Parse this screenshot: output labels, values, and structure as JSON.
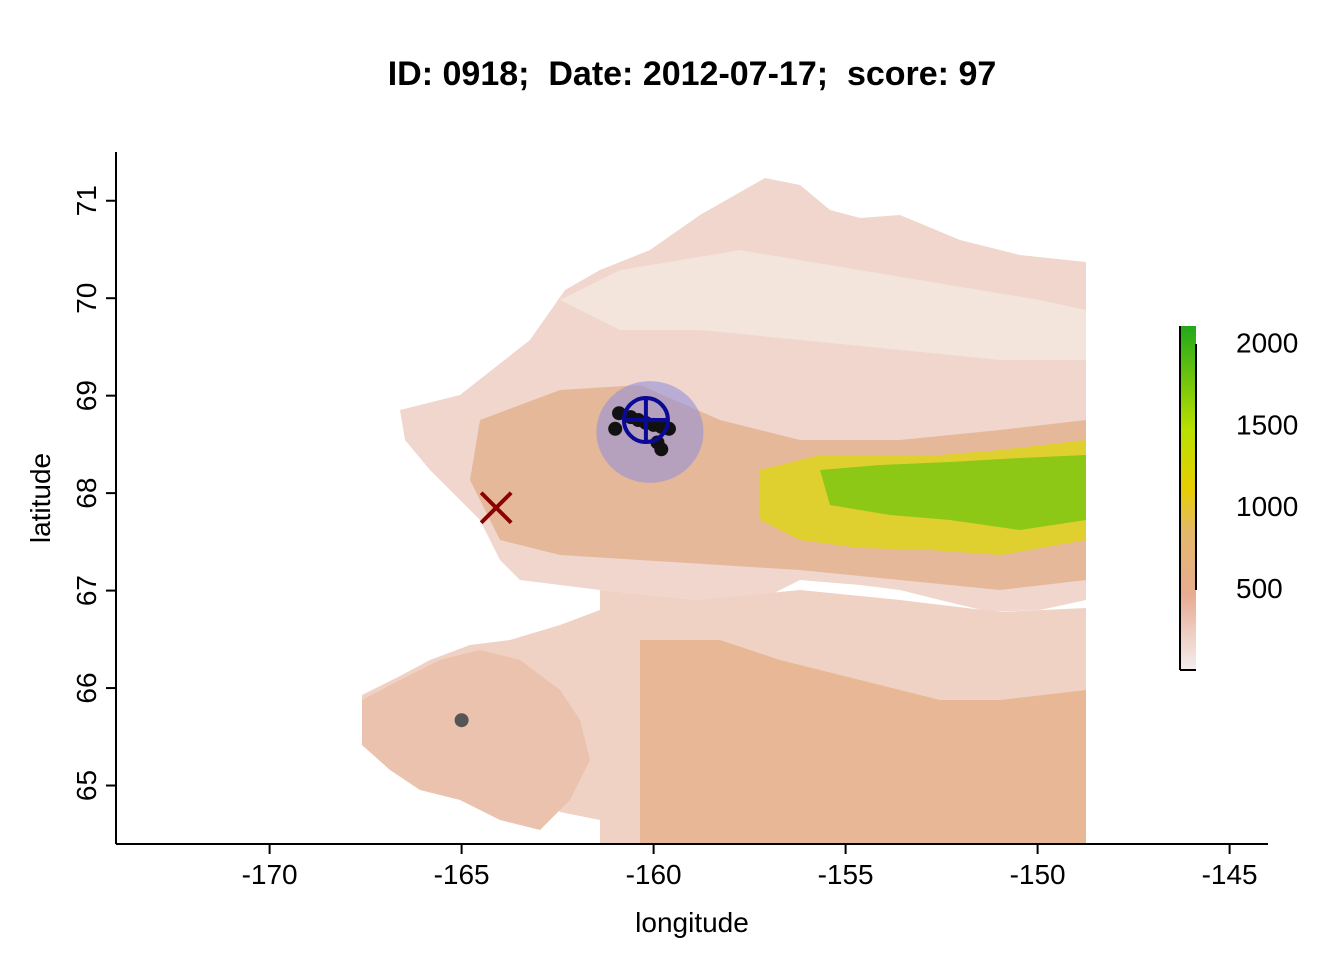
{
  "title": "ID: 0918;  Date: 2012-07-17;  score: 97",
  "chart_data": {
    "type": "map",
    "xlabel": "longitude",
    "ylabel": "latitude",
    "xlim": [
      -174,
      -144
    ],
    "ylim": [
      64.4,
      71.5
    ],
    "xticks": [
      -170,
      -165,
      -160,
      -155,
      -150,
      -145
    ],
    "yticks": [
      65,
      66,
      67,
      68,
      69,
      70,
      71
    ],
    "colorbar": {
      "ticks": [
        500,
        1000,
        1500,
        2000
      ],
      "range": [
        0,
        2100
      ],
      "colors": [
        "#f2f2f2",
        "#e6a88e",
        "#e6c040",
        "#e6e600",
        "#2fb50f"
      ]
    },
    "observed_points": [
      {
        "lon": -160.9,
        "lat": 68.82
      },
      {
        "lon": -160.6,
        "lat": 68.78
      },
      {
        "lon": -160.4,
        "lat": 68.75
      },
      {
        "lon": -160.2,
        "lat": 68.72
      },
      {
        "lon": -160.0,
        "lat": 68.7
      },
      {
        "lon": -159.8,
        "lat": 68.68
      },
      {
        "lon": -159.6,
        "lat": 68.66
      },
      {
        "lon": -161.0,
        "lat": 68.66
      },
      {
        "lon": -159.9,
        "lat": 68.52
      },
      {
        "lon": -159.8,
        "lat": 68.45
      },
      {
        "lon": -165.0,
        "lat": 65.67
      }
    ],
    "estimate": {
      "lon": -160.2,
      "lat": 68.75,
      "radius_lon": 1.7,
      "radius_lat": 0.9
    },
    "true_location": {
      "lon": -164.1,
      "lat": 67.85
    }
  }
}
